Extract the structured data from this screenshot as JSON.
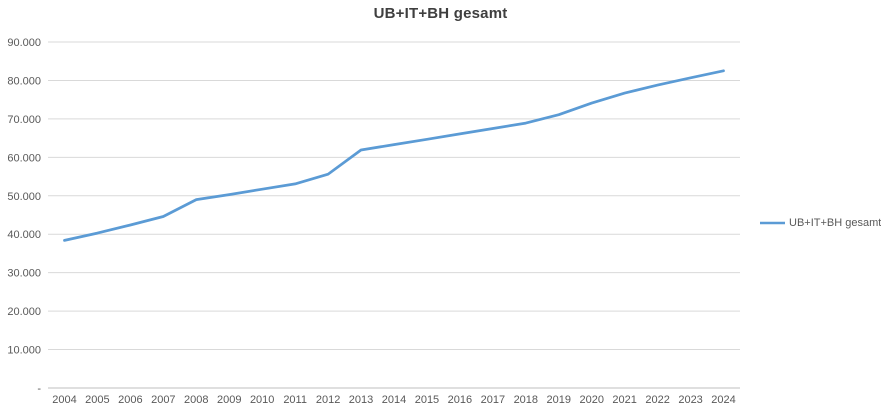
{
  "chart_data": {
    "type": "line",
    "title": "UB+IT+BH gesamt",
    "categories": [
      "2004",
      "2005",
      "2006",
      "2007",
      "2008",
      "2009",
      "2010",
      "2011",
      "2012",
      "2013",
      "2014",
      "2015",
      "2016",
      "2017",
      "2018",
      "2019",
      "2020",
      "2021",
      "2022",
      "2023",
      "2024"
    ],
    "series": [
      {
        "name": "UB+IT+BH gesamt",
        "values": [
          38400,
          40300,
          42400,
          44600,
          49000,
          50300,
          51700,
          53100,
          55600,
          61900,
          63300,
          64700,
          66100,
          67500,
          68900,
          71100,
          74100,
          76700,
          78800,
          80700,
          82500
        ],
        "color": "#5B9BD5"
      }
    ],
    "xlabel": "",
    "ylabel": "",
    "ylim": [
      0,
      90000
    ],
    "ytick_step": 10000,
    "ytick_labels": [
      "-",
      "10.000",
      "20.000",
      "30.000",
      "40.000",
      "50.000",
      "60.000",
      "70.000",
      "80.000",
      "90.000"
    ],
    "grid": true,
    "legend_position": "right",
    "legend_label": "UB+IT+BH gesamt"
  },
  "colors": {
    "series_line": "#5B9BD5",
    "gridline": "#d9d9d9",
    "axis_line": "#bfbfbf",
    "tick_text": "#595959",
    "title_text": "#3f3f3f",
    "background": "#ffffff"
  }
}
